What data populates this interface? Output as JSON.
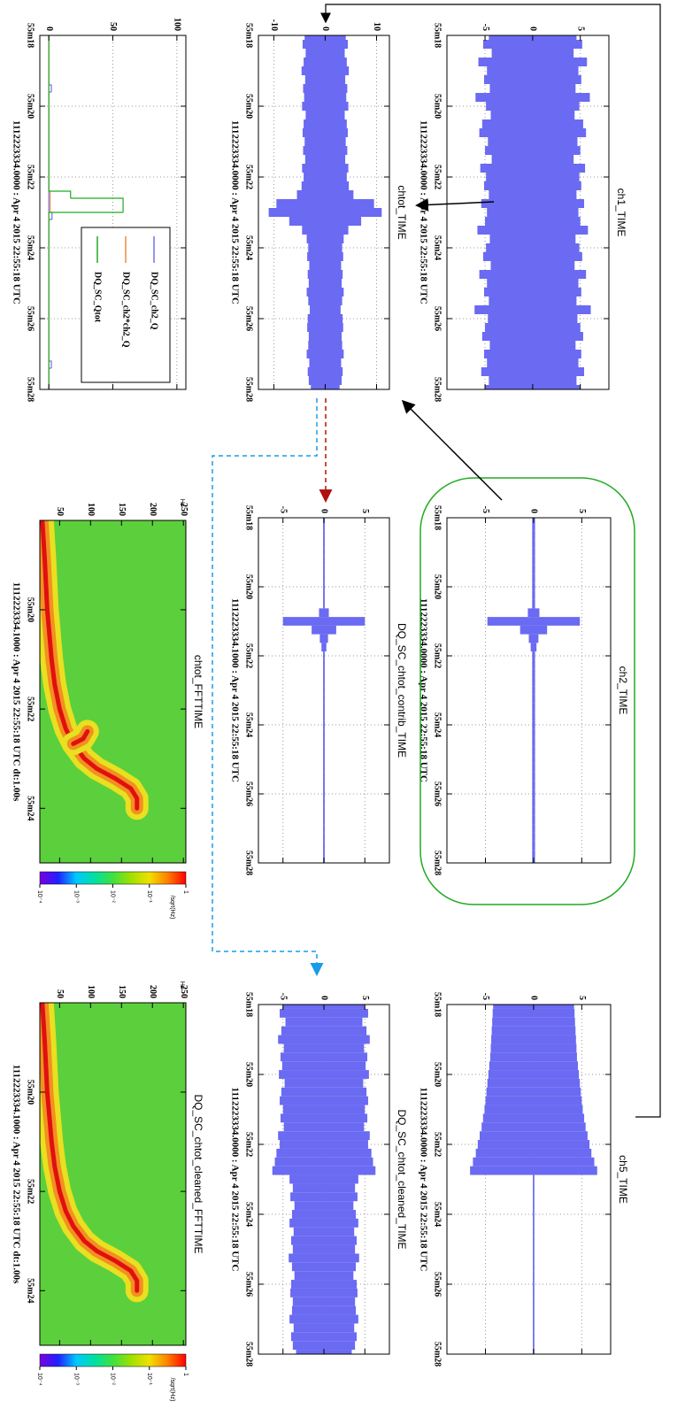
{
  "chart_data": [
    {
      "type": "area",
      "title": "ch1_TIME",
      "caption": "1112223334.0000 : Apr  4 2015 22:55:18 UTC",
      "color": "#6a6af2",
      "x": [
        0,
        0.25,
        0.5,
        0.75,
        1,
        1.25,
        1.5,
        1.75,
        2,
        2.25,
        2.5,
        2.75,
        3,
        3.25,
        3.5,
        3.75,
        4,
        4.25,
        4.5,
        4.75,
        5,
        5.25,
        5.5,
        5.75,
        6,
        6.25,
        6.5,
        6.75,
        7,
        7.25,
        7.5,
        7.75,
        8,
        8.25,
        8.5,
        8.75,
        9,
        9.25,
        9.5,
        9.75,
        10
      ],
      "values": [
        4.6,
        5.2,
        4.3,
        5.7,
        4.8,
        5.1,
        4.5,
        6.0,
        4.9,
        4.4,
        5.3,
        5.6,
        4.7,
        5.0,
        4.3,
        5.5,
        4.9,
        5.1,
        4.6,
        5.4,
        4.8,
        5.0,
        5.8,
        4.5,
        4.9,
        5.2,
        4.4,
        5.6,
        4.8,
        5.1,
        4.6,
        6.1,
        4.7,
        5.0,
        5.3,
        4.5,
        5.1,
        4.8,
        5.4,
        4.6,
        5.0
      ],
      "xlim": [
        0,
        10
      ],
      "xticks": [
        {
          "value": 0,
          "label": "55m18"
        },
        {
          "value": 2,
          "label": "55m20"
        },
        {
          "value": 4,
          "label": "55m22"
        },
        {
          "value": 6,
          "label": "55m24"
        },
        {
          "value": 8,
          "label": "55m26"
        },
        {
          "value": 10,
          "label": "55m28"
        }
      ],
      "ylim": [
        -9,
        8
      ],
      "yticks": [
        -5,
        0,
        5
      ],
      "grid": true
    },
    {
      "type": "area",
      "title": "chtot_TIME",
      "caption": "1112223334.0000 : Apr  4 2015 22:55:18 UTC",
      "color": "#6a6af2",
      "x": [
        0,
        0.25,
        0.5,
        0.75,
        1,
        1.25,
        1.5,
        1.75,
        2,
        2.25,
        2.5,
        2.75,
        3,
        3.25,
        3.5,
        3.75,
        4,
        4.25,
        4.5,
        4.75,
        5,
        5.25,
        5.5,
        5.75,
        6,
        6.25,
        6.5,
        6.75,
        7,
        7.25,
        7.5,
        7.75,
        8,
        8.25,
        8.5,
        8.75,
        9,
        9.25,
        9.5,
        9.75,
        10
      ],
      "values": [
        4.0,
        4.4,
        3.8,
        4.2,
        4.6,
        3.9,
        4.3,
        4.1,
        4.5,
        3.8,
        4.2,
        4.4,
        4.0,
        4.3,
        3.9,
        4.5,
        4.2,
        4.6,
        5.5,
        9.5,
        11.0,
        7.0,
        4.5,
        3.6,
        3.3,
        3.5,
        3.1,
        3.4,
        3.2,
        3.6,
        3.3,
        3.0,
        3.4,
        3.5,
        3.2,
        3.3,
        3.6,
        3.1,
        3.4,
        3.2,
        2.8
      ],
      "xlim": [
        0,
        10
      ],
      "xticks": [
        {
          "value": 0,
          "label": "55m18"
        },
        {
          "value": 2,
          "label": "55m20"
        },
        {
          "value": 4,
          "label": "55m22"
        },
        {
          "value": 6,
          "label": "55m24"
        },
        {
          "value": 8,
          "label": "55m26"
        },
        {
          "value": 10,
          "label": "55m28"
        }
      ],
      "ylim": [
        -13,
        12.5
      ],
      "yticks": [
        -10,
        0,
        10
      ],
      "grid": true
    },
    {
      "type": "histogram",
      "caption": "1112223334.0000 : Apr  4 2015 22:55:18 UTC",
      "legend": "top-right",
      "bins": [
        0,
        0.2,
        0.4,
        0.6,
        0.8,
        1,
        1.2,
        1.4,
        1.6,
        1.8,
        2,
        2.2,
        2.4,
        2.6,
        2.8,
        3,
        3.2,
        3.4,
        3.6,
        3.8,
        4,
        4.2,
        4.4,
        4.6,
        4.8,
        5,
        5.2,
        5.4,
        5.6,
        5.8,
        6,
        6.2,
        6.4,
        6.6,
        6.8,
        7,
        7.2,
        7.4,
        7.6,
        7.8,
        8,
        8.2,
        8.4,
        8.6,
        8.8,
        9,
        9.2,
        9.4,
        9.6,
        9.8,
        10
      ],
      "series": [
        {
          "name": "DQ_SC_ch2_Q",
          "color": "#7272ea",
          "values": [
            0,
            0,
            0,
            0,
            0,
            0,
            0,
            2,
            0,
            0,
            0,
            0,
            0,
            0,
            0,
            0,
            0,
            0,
            0,
            0,
            0,
            0,
            0,
            0,
            0,
            2.5,
            0,
            0,
            0,
            0,
            0,
            0,
            0,
            0,
            0,
            0,
            0,
            0,
            0,
            0,
            0,
            0,
            0,
            0,
            0,
            0,
            2,
            0,
            0,
            0
          ]
        },
        {
          "name": "DQ_SC_ch2*ch2_Q",
          "color": "#f08a3c",
          "values": [
            0,
            0,
            0,
            0,
            0,
            0,
            0,
            0,
            0,
            0,
            0,
            0,
            0,
            0,
            0,
            0,
            0,
            0,
            0,
            0,
            0,
            0,
            1,
            1,
            1,
            0,
            0,
            0,
            0,
            0,
            0,
            0,
            0,
            0,
            0,
            0,
            0,
            0,
            0,
            0,
            0,
            0,
            0,
            0,
            0,
            0,
            0,
            0,
            0,
            0
          ]
        },
        {
          "name": "DQ_SC_Qtot",
          "color": "#22aa22",
          "values": [
            0,
            0,
            0,
            0,
            0,
            0,
            0,
            0,
            0,
            0,
            0,
            0,
            0,
            0,
            0,
            0,
            0,
            0,
            0,
            0,
            0,
            0,
            17,
            58,
            58,
            0,
            0,
            0,
            0,
            0,
            0,
            0,
            0,
            0,
            0,
            0,
            0,
            0,
            0,
            0,
            0,
            0,
            0,
            0,
            0,
            0,
            0,
            0,
            0,
            0
          ]
        }
      ],
      "xlim": [
        0,
        10
      ],
      "xticks": [
        {
          "value": 0,
          "label": "55m18"
        },
        {
          "value": 2,
          "label": "55m20"
        },
        {
          "value": 4,
          "label": "55m22"
        },
        {
          "value": 6,
          "label": "55m24"
        },
        {
          "value": 8,
          "label": "55m26"
        },
        {
          "value": 10,
          "label": "55m28"
        }
      ],
      "ylim": [
        -7,
        107
      ],
      "yticks": [
        0,
        50,
        100
      ],
      "grid": true
    },
    {
      "type": "area",
      "title": "ch2_TIME",
      "caption": "1112223334.0000 : Apr  4 2015 22:55:18 UTC",
      "color": "#6a6af2",
      "x": [
        0,
        0.25,
        0.5,
        0.75,
        1,
        1.25,
        1.5,
        1.75,
        2,
        2.25,
        2.5,
        2.75,
        3,
        3.25,
        3.5,
        3.75,
        4,
        4.25,
        4.5,
        4.75,
        5,
        5.25,
        5.5,
        5.75,
        6,
        6.25,
        6.5,
        6.75,
        7,
        7.25,
        7.5,
        7.75,
        8,
        8.25,
        8.5,
        8.75,
        9,
        9.25,
        9.5,
        9.75,
        10
      ],
      "values": [
        0.15,
        0.15,
        0.15,
        0.15,
        0.15,
        0.15,
        0.15,
        0.15,
        0.15,
        0.15,
        0.15,
        0.6,
        4.8,
        1.4,
        0.5,
        0.3,
        0.15,
        0.15,
        0.15,
        0.15,
        0.15,
        0.15,
        0.15,
        0.15,
        0.15,
        0.15,
        0.15,
        0.15,
        0.15,
        0.15,
        0.15,
        0.15,
        0.15,
        0.15,
        0.15,
        0.15,
        0.15,
        0.15,
        0.15,
        0.15,
        0.15
      ],
      "xlim": [
        0,
        10
      ],
      "xticks": [
        {
          "value": 0,
          "label": "55m18"
        },
        {
          "value": 2,
          "label": "55m20"
        },
        {
          "value": 4,
          "label": "55m22"
        },
        {
          "value": 6,
          "label": "55m24"
        },
        {
          "value": 8,
          "label": "55m26"
        },
        {
          "value": 10,
          "label": "55m28"
        }
      ],
      "ylim": [
        -9,
        8
      ],
      "yticks": [
        -5,
        0,
        5
      ],
      "grid": true
    },
    {
      "type": "area",
      "title": "DQ_SC_chtot_contrib_TIME",
      "caption": "1112223334.1000 : Apr  4 2015 22:55:18 UTC",
      "color": "#6a6af2",
      "x": [
        0,
        0.25,
        0.5,
        0.75,
        1,
        1.25,
        1.5,
        1.75,
        2,
        2.25,
        2.5,
        2.75,
        3,
        3.25,
        3.5,
        3.75,
        4,
        4.25,
        4.5,
        4.75,
        5,
        5.25,
        5.5,
        5.75,
        6,
        6.25,
        6.5,
        6.75,
        7,
        7.25,
        7.5,
        7.75,
        8,
        8.25,
        8.5,
        8.75,
        9,
        9.25,
        9.5,
        9.75,
        10
      ],
      "values": [
        0.1,
        0.1,
        0.1,
        0.1,
        0.1,
        0.1,
        0.1,
        0.1,
        0.1,
        0.1,
        0.1,
        0.6,
        5.0,
        1.5,
        0.5,
        0.3,
        0.1,
        0.1,
        0.1,
        0.1,
        0.1,
        0.1,
        0.1,
        0.1,
        0.1,
        0.1,
        0.1,
        0.1,
        0.1,
        0.1,
        0.1,
        0.1,
        0.1,
        0.1,
        0.1,
        0.1,
        0.1,
        0.1,
        0.1,
        0.1,
        0.1
      ],
      "xlim": [
        0,
        10
      ],
      "xticks": [
        {
          "value": 0,
          "label": "55m18"
        },
        {
          "value": 2,
          "label": "55m20"
        },
        {
          "value": 4,
          "label": "55m22"
        },
        {
          "value": 6,
          "label": "55m24"
        },
        {
          "value": 8,
          "label": "55m26"
        },
        {
          "value": 10,
          "label": "55m28"
        }
      ],
      "ylim": [
        -8,
        8
      ],
      "yticks": [
        -5,
        0,
        5
      ],
      "grid": true
    },
    {
      "type": "spectrogram",
      "title": "chtot_FFTTIME",
      "caption": "1112223334.1000 : Apr  4 2015 22:55:18 UTC dt:1.00s",
      "unit": "Hz",
      "background": "#5ccf3c",
      "series": [
        {
          "color": "#e01010",
          "halo_colors": [
            "#e8e020",
            "#f39020"
          ],
          "x": [
            0.2,
            1,
            2,
            3,
            3.5,
            4,
            4.4,
            4.7,
            5,
            5.2,
            5.4,
            5.6,
            5.8,
            6.0
          ],
          "values": [
            22,
            26,
            30,
            37,
            42,
            50,
            60,
            72,
            90,
            110,
            140,
            165,
            175,
            175
          ]
        },
        {
          "color": "#e01010",
          "halo_colors": [
            "#e8e020",
            "#f39020"
          ],
          "x": [
            4.45,
            4.6,
            4.7
          ],
          "values": [
            95,
            88,
            72
          ]
        }
      ],
      "xlim": [
        0.2,
        7.1
      ],
      "xticks": [
        {
          "value": 2,
          "label": "55m20"
        },
        {
          "value": 4,
          "label": "55m22"
        },
        {
          "value": 6,
          "label": "55m24"
        }
      ],
      "ylim": [
        18,
        254
      ],
      "yticks": [
        50,
        100,
        150,
        200,
        250
      ],
      "grid": false,
      "colorbar": {
        "label": "/sqrt(Hz)",
        "scale": "log",
        "lim": [
          0.0001,
          1
        ],
        "colors": [
          "#7a00e0",
          "#2020ff",
          "#00c8ff",
          "#00e0a0",
          "#40e040",
          "#a0e000",
          "#f0e000",
          "#ff8000",
          "#ff0000"
        ],
        "ticks": [
          {
            "value": 0.0001,
            "label": "10⁻⁴"
          },
          {
            "value": 0.001,
            "label": "10⁻³"
          },
          {
            "value": 0.01,
            "label": "10⁻²"
          },
          {
            "value": 0.1,
            "label": "10⁻¹"
          },
          1
        ]
      }
    },
    {
      "type": "area",
      "title": "ch5_TIME",
      "caption": "1112223334.0000 : Apr  4 2015 22:55:18 UTC",
      "color": "#6a6af2",
      "x": [
        0,
        0.25,
        0.5,
        0.75,
        1,
        1.25,
        1.5,
        1.75,
        2,
        2.25,
        2.5,
        2.75,
        3,
        3.25,
        3.5,
        3.75,
        4,
        4.25,
        4.5,
        4.75,
        5,
        5.25,
        5.5,
        5.75,
        6,
        6.25,
        6.5,
        6.75,
        7,
        7.25,
        7.5,
        7.75,
        8,
        8.25,
        8.5,
        8.75,
        9,
        9.25,
        9.5,
        9.75,
        10
      ],
      "values": [
        4.2,
        4.25,
        4.3,
        4.35,
        4.4,
        4.45,
        4.5,
        4.6,
        4.7,
        4.8,
        4.9,
        5.0,
        5.1,
        5.25,
        5.4,
        5.6,
        5.8,
        6.0,
        6.3,
        6.6,
        0.08,
        0.08,
        0.08,
        0.08,
        0.08,
        0.08,
        0.08,
        0.08,
        0.08,
        0.08,
        0.08,
        0.08,
        0.08,
        0.08,
        0.08,
        0.08,
        0.08,
        0.08,
        0.08,
        0.08,
        0.08
      ],
      "xlim": [
        0,
        10
      ],
      "xticks": [
        {
          "value": 0,
          "label": "55m18"
        },
        {
          "value": 2,
          "label": "55m20"
        },
        {
          "value": 4,
          "label": "55m22"
        },
        {
          "value": 6,
          "label": "55m24"
        },
        {
          "value": 8,
          "label": "55m26"
        },
        {
          "value": 10,
          "label": "55m28"
        }
      ],
      "ylim": [
        -9,
        8
      ],
      "yticks": [
        -5,
        0,
        5
      ],
      "grid": true
    },
    {
      "type": "area",
      "title": "DQ_SC_chtot_cleaned_TIME",
      "caption": "1112223334.0000 : Apr  4 2015 22:55:18 UTC",
      "color": "#6a6af2",
      "x": [
        0,
        0.25,
        0.5,
        0.75,
        1,
        1.25,
        1.5,
        1.75,
        2,
        2.25,
        2.5,
        2.75,
        3,
        3.25,
        3.5,
        3.75,
        4,
        4.25,
        4.5,
        4.75,
        5,
        5.25,
        5.5,
        5.75,
        6,
        6.25,
        6.5,
        6.75,
        7,
        7.25,
        7.5,
        7.75,
        8,
        8.25,
        8.5,
        8.75,
        9,
        9.25,
        9.5,
        9.75,
        10
      ],
      "values": [
        5.0,
        5.4,
        4.7,
        5.2,
        5.6,
        4.9,
        5.3,
        5.1,
        5.5,
        4.8,
        5.2,
        5.4,
        5.0,
        5.3,
        4.9,
        5.6,
        5.4,
        5.8,
        6.0,
        6.3,
        4.2,
        3.8,
        4.1,
        3.6,
        3.9,
        4.2,
        3.7,
        4.0,
        3.8,
        4.3,
        3.9,
        3.6,
        4.0,
        4.1,
        3.8,
        3.9,
        4.2,
        3.7,
        4.0,
        3.8,
        3.4
      ],
      "xlim": [
        0,
        10
      ],
      "xticks": [
        {
          "value": 0,
          "label": "55m18"
        },
        {
          "value": 2,
          "label": "55m20"
        },
        {
          "value": 4,
          "label": "55m22"
        },
        {
          "value": 6,
          "label": "55m24"
        },
        {
          "value": 8,
          "label": "55m26"
        },
        {
          "value": 10,
          "label": "55m28"
        }
      ],
      "ylim": [
        -8,
        8
      ],
      "yticks": [
        -5,
        0,
        5
      ],
      "grid": true
    },
    {
      "type": "spectrogram",
      "title": "DQ_SC_chtot_cleaned_FFTTIME",
      "caption": "1112223334.1000 : Apr  4 2015 22:55:18 UTC dt:1.00s",
      "unit": "Hz",
      "background": "#5ccf3c",
      "series": [
        {
          "color": "#e01010",
          "halo_colors": [
            "#e8e020",
            "#f39020"
          ],
          "x": [
            0.2,
            1,
            2,
            3,
            3.5,
            4,
            4.4,
            4.7,
            5,
            5.2,
            5.4,
            5.6,
            5.8,
            6.0
          ],
          "values": [
            22,
            26,
            30,
            37,
            42,
            50,
            60,
            72,
            90,
            110,
            140,
            165,
            175,
            175
          ]
        }
      ],
      "xlim": [
        0.2,
        7.1
      ],
      "xticks": [
        {
          "value": 2,
          "label": "55m20"
        },
        {
          "value": 4,
          "label": "55m22"
        },
        {
          "value": 6,
          "label": "55m24"
        }
      ],
      "ylim": [
        18,
        254
      ],
      "yticks": [
        50,
        100,
        150,
        200,
        250
      ],
      "grid": false,
      "colorbar": {
        "label": "/sqrt(Hz)",
        "scale": "log",
        "lim": [
          0.0001,
          1
        ],
        "colors": [
          "#7a00e0",
          "#2020ff",
          "#00c8ff",
          "#00e0a0",
          "#40e040",
          "#a0e000",
          "#f0e000",
          "#ff8000",
          "#ff0000"
        ],
        "ticks": [
          {
            "value": 0.0001,
            "label": "10⁻⁴"
          },
          {
            "value": 0.001,
            "label": "10⁻³"
          },
          {
            "value": 0.01,
            "label": "10⁻²"
          },
          {
            "value": 0.1,
            "label": "10⁻¹"
          },
          1
        ]
      }
    }
  ]
}
